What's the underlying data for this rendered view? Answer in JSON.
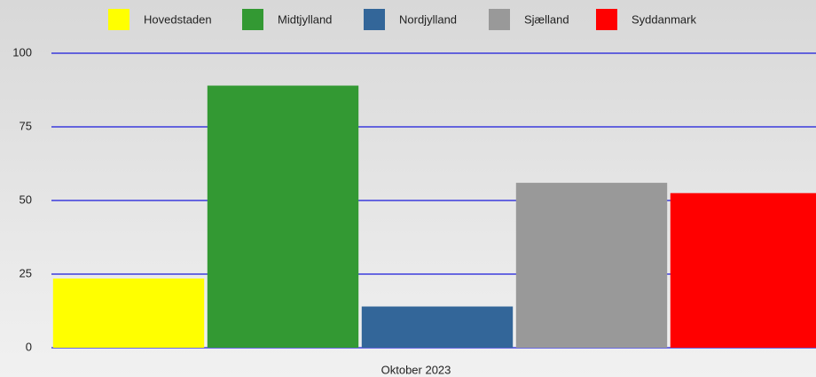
{
  "chart_data": {
    "type": "bar",
    "categories": [
      "Oktober 2023"
    ],
    "series": [
      {
        "name": "Hovedstaden",
        "color": "#ffff00",
        "values": [
          23.5
        ]
      },
      {
        "name": "Midtjylland",
        "color": "#339933",
        "values": [
          89
        ]
      },
      {
        "name": "Nordjylland",
        "color": "#336699",
        "values": [
          14
        ]
      },
      {
        "name": "Sjælland",
        "color": "#999999",
        "values": [
          56
        ]
      },
      {
        "name": "Syddanmark",
        "color": "#ff0000",
        "values": [
          52.5
        ]
      }
    ],
    "ylim": [
      0,
      100
    ],
    "yticks": [
      0,
      25,
      50,
      75,
      100
    ],
    "grid": true,
    "legend": "top"
  }
}
